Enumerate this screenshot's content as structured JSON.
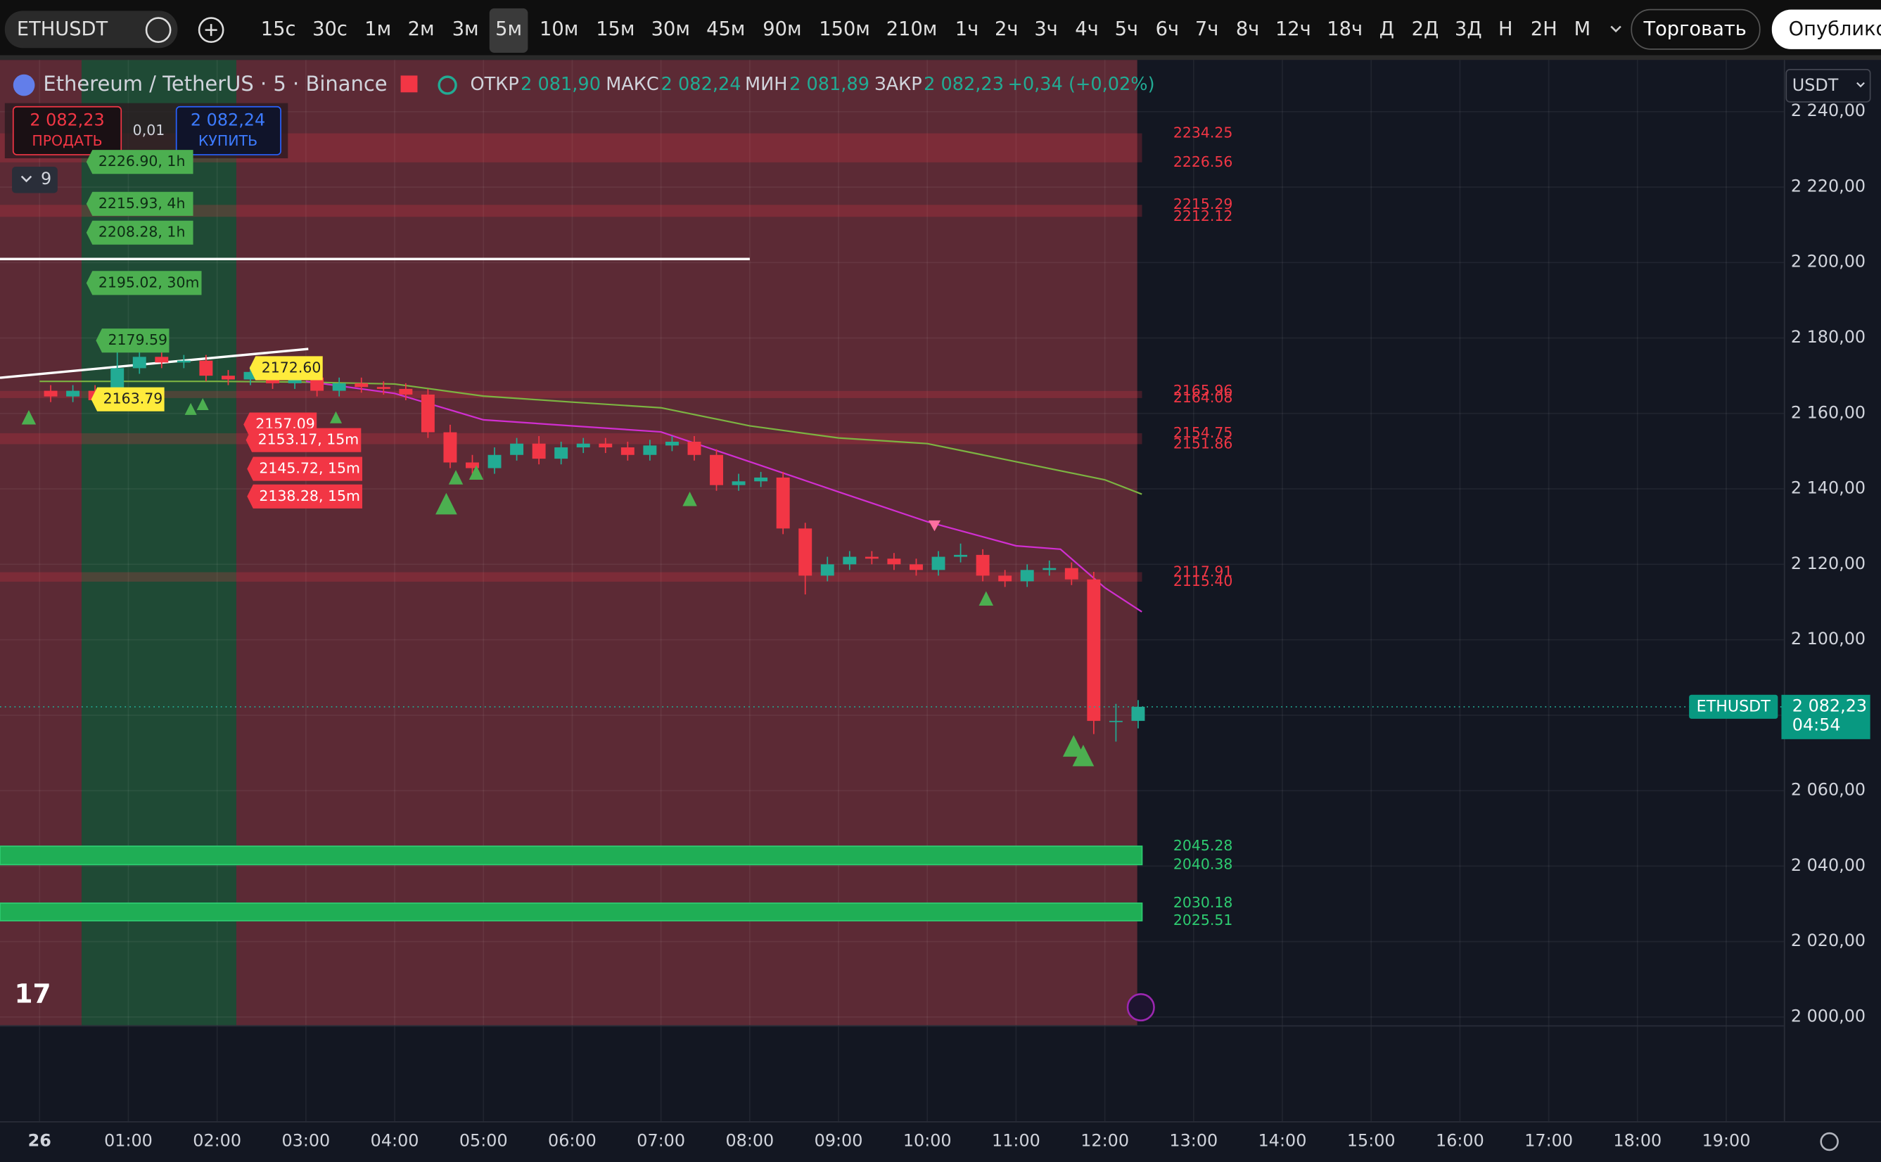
{
  "toolbar": {
    "symbol": "ETHUSDT",
    "intervals": [
      "15с",
      "30с",
      "1м",
      "2м",
      "3м",
      "5м",
      "10м",
      "15м",
      "30м",
      "45м",
      "90м",
      "150м",
      "210м",
      "1ч",
      "2ч",
      "3ч",
      "4ч",
      "5ч",
      "6ч",
      "7ч",
      "8ч",
      "12ч",
      "18ч",
      "Д",
      "2Д",
      "3Д",
      "Н",
      "2Н",
      "М"
    ],
    "active_interval": "5м",
    "trade_button": "Торговать",
    "publish_button": "Опублико"
  },
  "legend": {
    "title": "Ethereum / TetherUS · 5 · Binance",
    "open_label": "ОТКР",
    "open": "2 081,90",
    "high_label": "МАКС",
    "high": "2 082,24",
    "low_label": "МИН",
    "low": "2 081,89",
    "close_label": "ЗАКР",
    "close": "2 082,23",
    "change": "+0,34 (+0,02%)"
  },
  "trade": {
    "sell_price": "2 082,23",
    "sell_label": "ПРОДАТЬ",
    "spread": "0,01",
    "buy_price": "2 082,24",
    "buy_label": "КУПИТЬ",
    "indicators_count": "9",
    "currency": "USDT"
  },
  "chart_data": {
    "type": "candlestick",
    "up_color": "#22ab94",
    "down_color": "#f23645",
    "ylim": [
      1997.8,
      2253.7
    ],
    "yticks": [
      {
        "value": 2000,
        "label": "2 000,00"
      },
      {
        "value": 2020,
        "label": "2 020,00"
      },
      {
        "value": 2040,
        "label": "2 040,00"
      },
      {
        "value": 2060,
        "label": "2 060,00"
      },
      {
        "value": 2080,
        "label": "2 080,00"
      },
      {
        "value": 2100,
        "label": "2 100,00"
      },
      {
        "value": 2120,
        "label": "2 120,00"
      },
      {
        "value": 2140,
        "label": "2 140,00"
      },
      {
        "value": 2160,
        "label": "2 160,00"
      },
      {
        "value": 2180,
        "label": "2 180,00"
      },
      {
        "value": 2200,
        "label": "2 200,00"
      },
      {
        "value": 2220,
        "label": "2 220,00"
      },
      {
        "value": 2240,
        "label": "2 240,00"
      }
    ],
    "time_labels": [
      "26",
      "01:00",
      "02:00",
      "03:00",
      "04:00",
      "05:00",
      "06:00",
      "07:00",
      "08:00",
      "09:00",
      "10:00",
      "11:00",
      "12:00",
      "13:00",
      "14:00",
      "15:00",
      "16:00",
      "17:00",
      "18:00",
      "19:00"
    ],
    "x": [
      "00:00",
      "00:15",
      "00:30",
      "00:45",
      "01:00",
      "01:15",
      "01:30",
      "01:45",
      "02:00",
      "02:15",
      "02:30",
      "02:45",
      "03:00",
      "03:15",
      "03:30",
      "03:45",
      "04:00",
      "04:15",
      "04:30",
      "04:45",
      "05:00",
      "05:15",
      "05:30",
      "05:45",
      "06:00",
      "06:15",
      "06:30",
      "06:45",
      "07:00",
      "07:15",
      "07:30",
      "07:45",
      "08:00",
      "08:15",
      "08:30",
      "08:45",
      "09:00",
      "09:15",
      "09:30",
      "09:45",
      "10:00",
      "10:15",
      "10:30",
      "10:45",
      "11:00",
      "11:15",
      "11:30",
      "11:45",
      "12:00",
      "12:15"
    ],
    "open": [
      2166,
      2164.5,
      2166,
      2163.5,
      2172,
      2175,
      2173.5,
      2174,
      2170,
      2169,
      2171,
      2168,
      2169.5,
      2166,
      2168,
      2167,
      2166.5,
      2165,
      2155,
      2147,
      2145.5,
      2149,
      2152,
      2148,
      2151,
      2152,
      2151,
      2149,
      2151.5,
      2152.5,
      2149,
      2141,
      2142,
      2143,
      2129.5,
      2117,
      2120,
      2122,
      2121.5,
      2120,
      2118.5,
      2122,
      2122.5,
      2117,
      2115.5,
      2118.5,
      2119,
      2116,
      2078.5,
      2078.5
    ],
    "high": [
      2167.5,
      2167.5,
      2167.5,
      2179.6,
      2177,
      2176.5,
      2175.5,
      2175.5,
      2171.5,
      2172.5,
      2172.6,
      2171,
      2171,
      2169.5,
      2169.5,
      2168.5,
      2168,
      2166.5,
      2157,
      2149,
      2151,
      2153.5,
      2154,
      2152.5,
      2153.5,
      2153.5,
      2152.5,
      2153,
      2154,
      2154,
      2150.5,
      2144,
      2144.5,
      2144.5,
      2131,
      2122,
      2123.5,
      2123.5,
      2123,
      2121.5,
      2123.5,
      2125.5,
      2124,
      2118.5,
      2120,
      2121,
      2120.5,
      2118,
      2083,
      2084
    ],
    "low": [
      2163,
      2163,
      2162,
      2162,
      2170.5,
      2172,
      2172,
      2168.5,
      2167.5,
      2167.5,
      2166.5,
      2166.5,
      2164.5,
      2164.5,
      2165.5,
      2165,
      2163.5,
      2153.5,
      2145.5,
      2144,
      2144,
      2147.5,
      2146.5,
      2146.5,
      2149.5,
      2149.5,
      2147.5,
      2147.5,
      2150,
      2147.5,
      2139.5,
      2139.5,
      2140.5,
      2128,
      2112,
      2115.5,
      2118.5,
      2120,
      2118.5,
      2117,
      2117,
      2120.5,
      2115.5,
      2114,
      2114,
      2117,
      2114.5,
      2075,
      2073,
      2076.5
    ],
    "close": [
      2164.5,
      2166,
      2163.5,
      2172,
      2175,
      2173.5,
      2174,
      2170,
      2169,
      2171,
      2168,
      2169.5,
      2166,
      2168,
      2167,
      2166.5,
      2165,
      2155,
      2147,
      2145.5,
      2149,
      2152,
      2148,
      2151,
      2152,
      2151,
      2149,
      2151.5,
      2152.5,
      2149,
      2141,
      2142,
      2143,
      2129.5,
      2117,
      2120,
      2122,
      2121.5,
      2120,
      2118.5,
      2122,
      2122.5,
      2117,
      2115.5,
      2118.5,
      2119,
      2116,
      2078.5,
      2078.5,
      2082.23
    ],
    "ma_lines": [
      {
        "color": "#7cb342",
        "x": [
          "00:00",
          "01:00",
          "02:00",
          "03:00",
          "04:00",
          "05:00",
          "06:00",
          "07:00",
          "08:00",
          "09:00",
          "10:00",
          "11:00",
          "12:00",
          "12:25"
        ],
        "values": [
          2168.5,
          2168.5,
          2168.5,
          2168.3,
          2167.8,
          2164.6,
          2163,
          2161.5,
          2156.7,
          2153.5,
          2152,
          2147.2,
          2142.4,
          2138.6
        ]
      },
      {
        "color": "#d12fd1",
        "x": [
          "03:00",
          "04:00",
          "05:00",
          "06:00",
          "07:00",
          "08:00",
          "09:00",
          "10:00",
          "11:00",
          "11:30",
          "12:00",
          "12:25"
        ],
        "values": [
          2168.5,
          2165.3,
          2158.3,
          2156.7,
          2155.1,
          2147.2,
          2139.2,
          2131.3,
          2124.9,
          2124,
          2113.8,
          2107.4
        ]
      }
    ],
    "zones": [
      {
        "kind": "resistance",
        "top": 2234.25,
        "bottom": 2226.56
      },
      {
        "kind": "resistance",
        "top": 2215.29,
        "bottom": 2212.12
      },
      {
        "kind": "resistance",
        "top": 2165.96,
        "bottom": 2164.08
      },
      {
        "kind": "resistance",
        "top": 2154.75,
        "bottom": 2151.86
      },
      {
        "kind": "resistance",
        "top": 2117.91,
        "bottom": {
          "value": 2115.4,
          "label": "2115.40"
        }
      },
      {
        "kind": "support",
        "top": 2045.28,
        "bottom": 2040.38
      },
      {
        "kind": "support",
        "top": 2030.18,
        "bottom": 2025.51
      }
    ],
    "level_tags": [
      {
        "text": "2226.90, 1h",
        "kind": "green"
      },
      {
        "text": "2215.93, 4h",
        "kind": "green"
      },
      {
        "text": "2208.28, 1h",
        "kind": "green"
      },
      {
        "text": "2195.02, 30m",
        "kind": "green"
      },
      {
        "text": "2179.59",
        "kind": "green"
      },
      {
        "text": "2172.60",
        "kind": "yellow"
      },
      {
        "text": "2163.79",
        "kind": "yellow"
      },
      {
        "text": "2157.09",
        "kind": "red"
      },
      {
        "text": "2153.17, 15m",
        "kind": "red"
      },
      {
        "text": "2145.72, 15m",
        "kind": "red"
      },
      {
        "text": "2138.28, 15m",
        "kind": "red"
      }
    ],
    "current": {
      "symbol": "ETHUSDT",
      "price": "2 082,23",
      "countdown": "04:54",
      "value": 2082.23
    }
  }
}
